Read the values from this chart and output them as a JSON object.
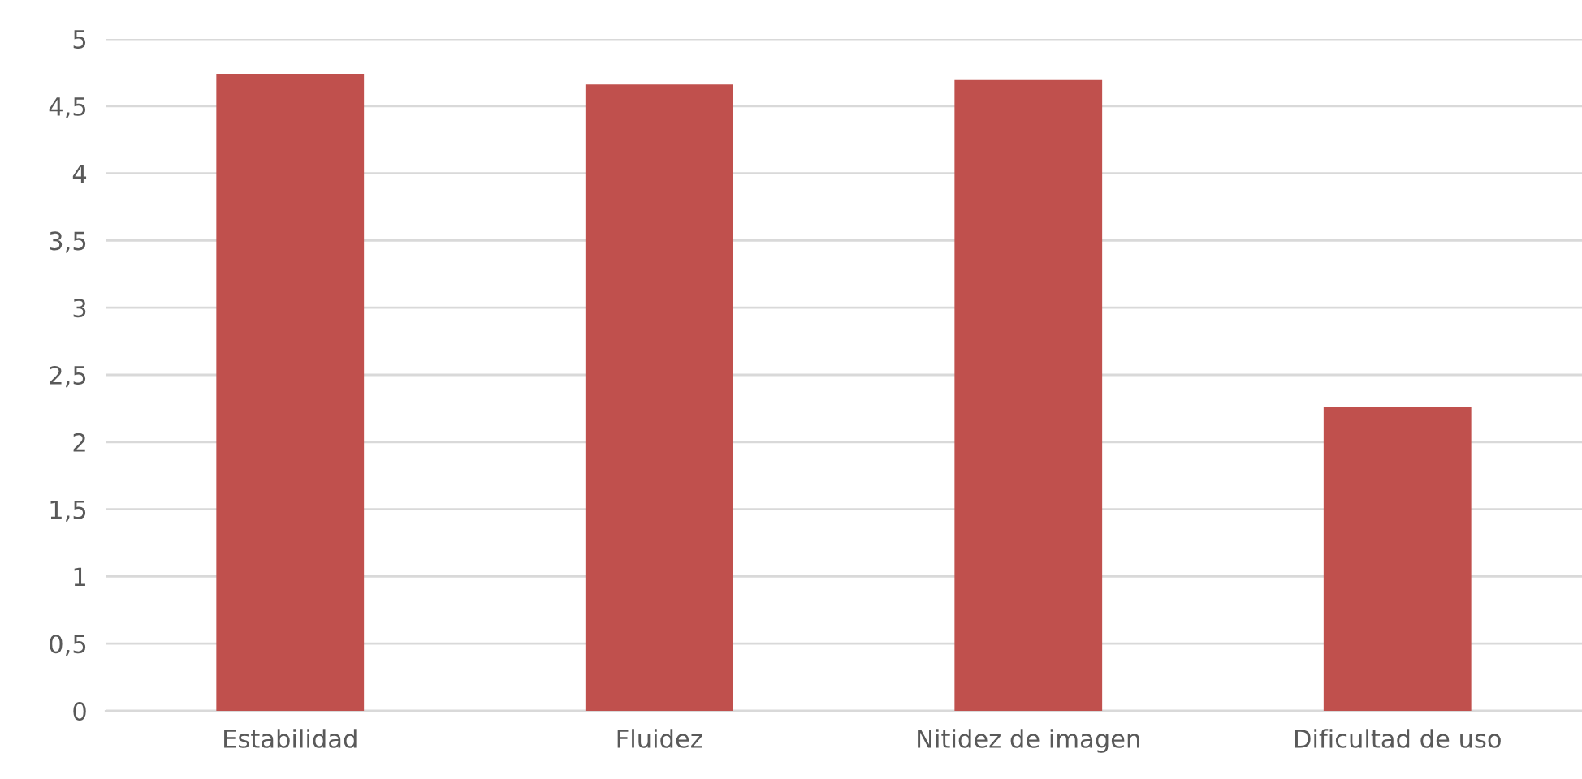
{
  "chart_data": {
    "type": "bar",
    "categories": [
      "Estabilidad",
      "Fluidez",
      "Nitidez de imagen",
      "Dificultad de uso"
    ],
    "values": [
      4.74,
      4.66,
      4.7,
      2.26
    ],
    "color": "#c0504d",
    "ylim": [
      0,
      5
    ],
    "yticks": [
      0,
      {
        "value": 0.5,
        "label": "0,5"
      },
      1,
      {
        "value": 1.5,
        "label": "1,5"
      },
      2,
      {
        "value": 2.5,
        "label": "2,5"
      },
      3,
      {
        "value": 3.5,
        "label": "3,5"
      },
      4,
      {
        "value": 4.5,
        "label": "4,5"
      },
      5
    ],
    "grid": "y",
    "legend": false
  }
}
